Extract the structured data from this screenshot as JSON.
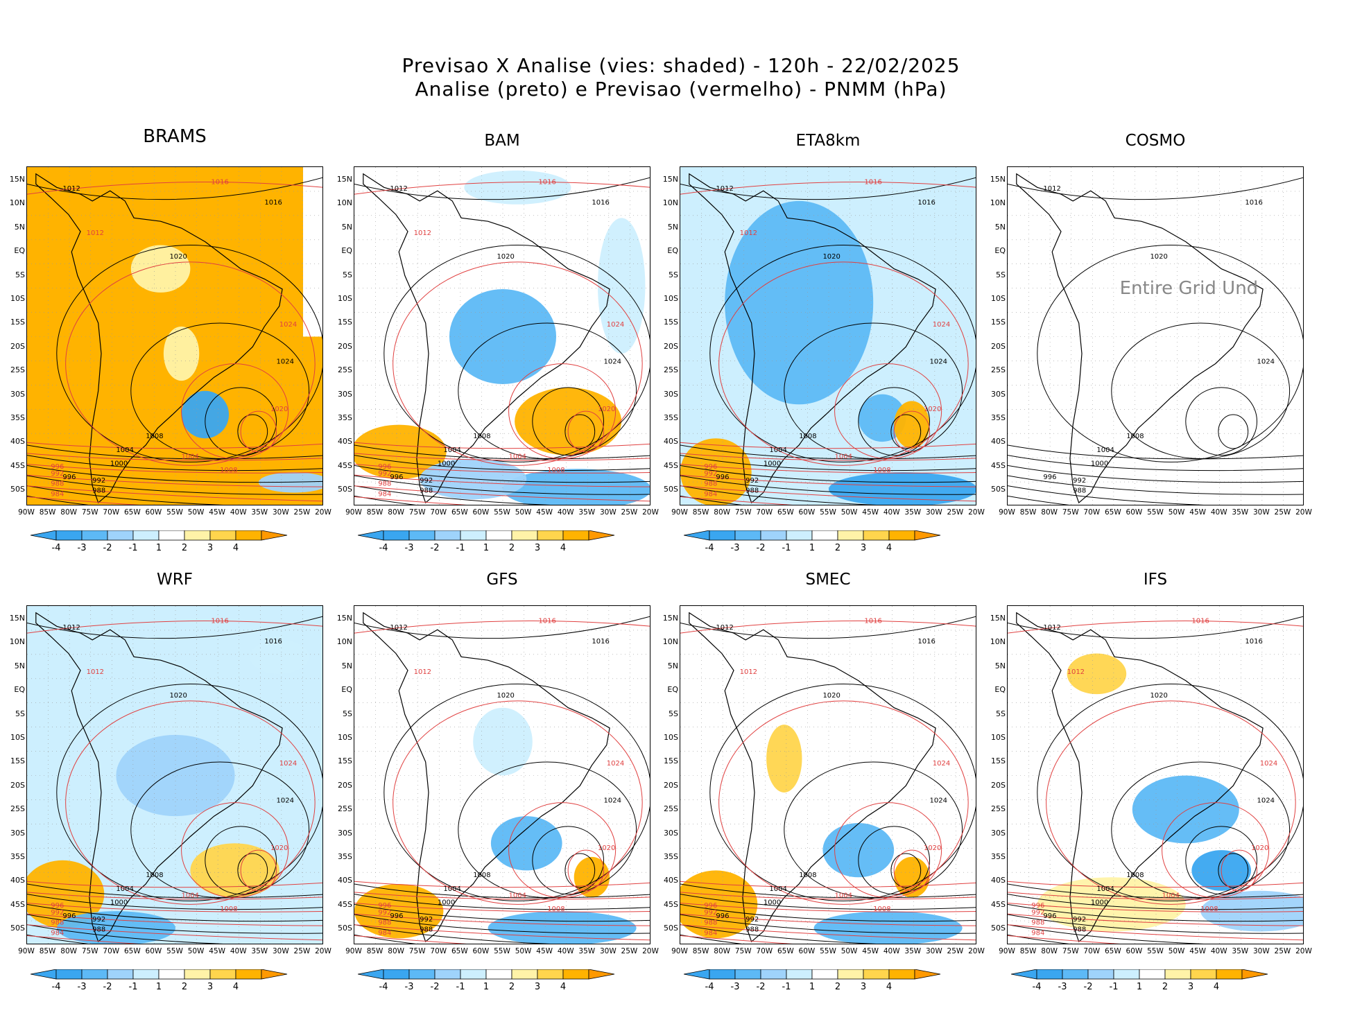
{
  "header": {
    "line1": "Previsao X Analise (vies: shaded) - 120h - 22/02/2025",
    "line2": "Analise (preto) e Previsao (vermelho) - PNMM (hPa)"
  },
  "axes": {
    "lat_labels": [
      "15N",
      "10N",
      "5N",
      "EQ",
      "5S",
      "10S",
      "15S",
      "20S",
      "25S",
      "30S",
      "35S",
      "40S",
      "45S",
      "50S"
    ],
    "lon_labels": [
      "90W",
      "85W",
      "80W",
      "75W",
      "70W",
      "65W",
      "60W",
      "55W",
      "50W",
      "45W",
      "40W",
      "35W",
      "30W",
      "25W",
      "20W"
    ]
  },
  "colorbar": {
    "ticks": [
      "-4",
      "-3",
      "-2",
      "-1",
      "1",
      "2",
      "3",
      "4"
    ],
    "colors": [
      "#3aa6f0",
      "#5db9f6",
      "#9fd3fb",
      "#cdeffe",
      "#ffffff",
      "#fff3a8",
      "#ffd54d",
      "#ffb300",
      "#ff9900"
    ]
  },
  "colors": {
    "analysis_isobar": "#000000",
    "forecast_isobar": "#e04040",
    "coast": "#000000",
    "grid": "#9a9a9a"
  },
  "panels": [
    {
      "name": "BRAMS",
      "style": "warm"
    },
    {
      "name": "BAM",
      "style": "mixed"
    },
    {
      "name": "ETA8km",
      "style": "cool"
    },
    {
      "name": "COSMO",
      "style": "none",
      "missing_text": "Entire Grid Und"
    },
    {
      "name": "WRF",
      "style": "mixed2"
    },
    {
      "name": "GFS",
      "style": "mixed3"
    },
    {
      "name": "SMEC",
      "style": "mixed4"
    },
    {
      "name": "IFS",
      "style": "mixed5"
    }
  ],
  "isobar_labels": {
    "analysis": [
      "1012",
      "1016",
      "1020",
      "1024",
      "1008",
      "1004",
      "1000",
      "996",
      "992",
      "988"
    ],
    "forecast": [
      "1016",
      "1012",
      "1020",
      "1024",
      "1008",
      "1004",
      "996",
      "992",
      "988",
      "984"
    ]
  }
}
